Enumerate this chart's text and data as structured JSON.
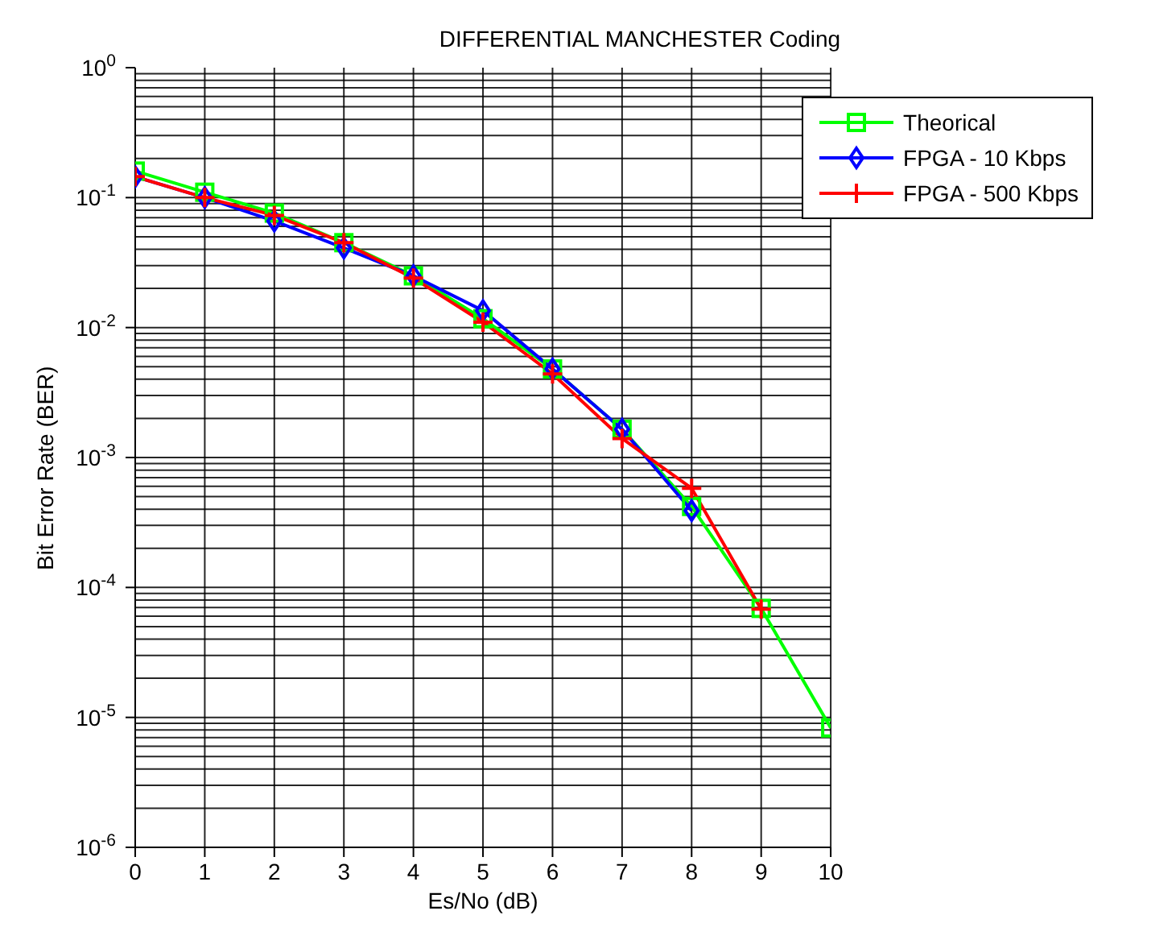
{
  "chart_data": {
    "type": "line",
    "title": "DIFFERENTIAL MANCHESTER Coding",
    "xlabel": "Es/No (dB)",
    "ylabel": "Bit Error Rate (BER)",
    "x": [
      0,
      1,
      2,
      3,
      4,
      5,
      6,
      7,
      8,
      9,
      10
    ],
    "series": [
      {
        "name": "Theorical",
        "color": "#00ff00",
        "marker": "square",
        "values": [
          0.16,
          0.11,
          0.076,
          0.045,
          0.025,
          0.0117,
          0.0048,
          0.00165,
          0.00042,
          6.9e-05,
          8.3e-06
        ]
      },
      {
        "name": "FPGA - 10 Kbps",
        "color": "#0000ff",
        "marker": "diamond",
        "values": [
          0.145,
          0.1,
          0.066,
          0.041,
          0.025,
          0.0135,
          0.0048,
          0.00165,
          0.00039,
          null,
          null
        ]
      },
      {
        "name": "FPGA - 500 Kbps",
        "color": "#ff0000",
        "marker": "cross",
        "values": [
          0.145,
          0.1,
          0.073,
          0.045,
          0.024,
          0.011,
          0.0044,
          0.0014,
          0.00058,
          6.8e-05,
          null
        ]
      }
    ],
    "log": "y",
    "xlim": [
      0,
      10
    ],
    "xticks": [
      0,
      1,
      2,
      3,
      4,
      5,
      6,
      7,
      8,
      9,
      10
    ],
    "ylim": [
      1e-06,
      1
    ],
    "yticks": [
      {
        "value": 1e-06,
        "label": "10$^{-6}$"
      },
      {
        "value": 1e-05,
        "label": "10$^{-5}$"
      },
      {
        "value": 0.0001,
        "label": "10$^{-4}$"
      },
      {
        "value": 0.001,
        "label": "10$^{-3}$"
      },
      {
        "value": 0.01,
        "label": "10$^{-2}$"
      },
      {
        "value": 0.1,
        "label": "10$^{-1}$"
      },
      {
        "value": 1,
        "label": "10$^{0}$"
      }
    ],
    "grid": true,
    "legend": "top right",
    "line_style": "solid"
  }
}
